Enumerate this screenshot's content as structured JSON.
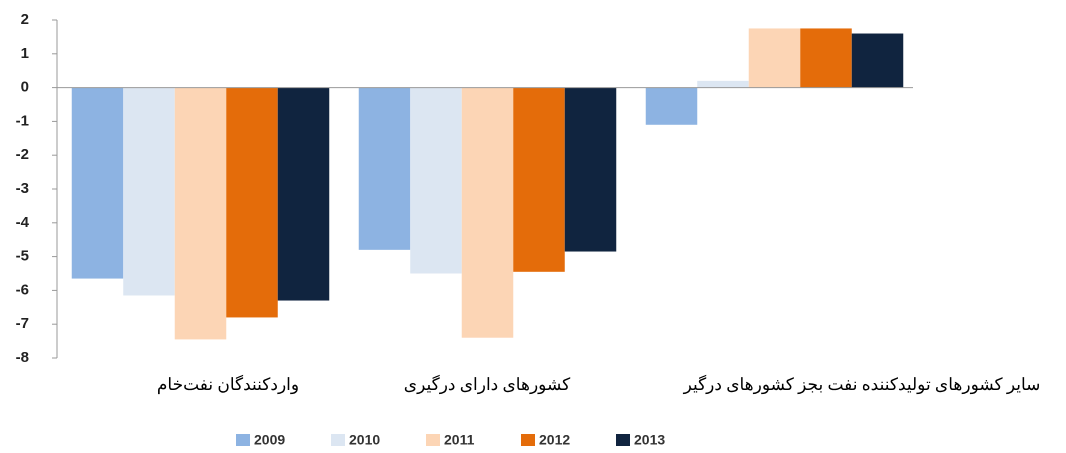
{
  "chart_data": {
    "type": "bar",
    "categories": [
      "واردکنندگان نفت‌خام",
      "کشورهای دارای درگیری",
      "سایر کشورهای تولیدکننده نفت بجز کشورهای درگیر"
    ],
    "series": [
      {
        "name": "2009",
        "color": "#8db3e2",
        "values": [
          -5.65,
          -4.8,
          -1.1
        ]
      },
      {
        "name": "2010",
        "color": "#dce6f2",
        "values": [
          -6.15,
          -5.5,
          0.2
        ]
      },
      {
        "name": "2011",
        "color": "#fcd5b5",
        "values": [
          -7.45,
          -7.4,
          1.75
        ]
      },
      {
        "name": "2012",
        "color": "#e46c0a",
        "values": [
          -6.8,
          -5.45,
          1.75
        ]
      },
      {
        "name": "2013",
        "color": "#10243f",
        "values": [
          -6.3,
          -4.85,
          1.6
        ]
      }
    ],
    "ylim": [
      -8,
      2
    ],
    "yticks": [
      -8,
      -7,
      -6,
      -5,
      -4,
      -3,
      -2,
      -1,
      0,
      1,
      2
    ],
    "grid": false
  }
}
